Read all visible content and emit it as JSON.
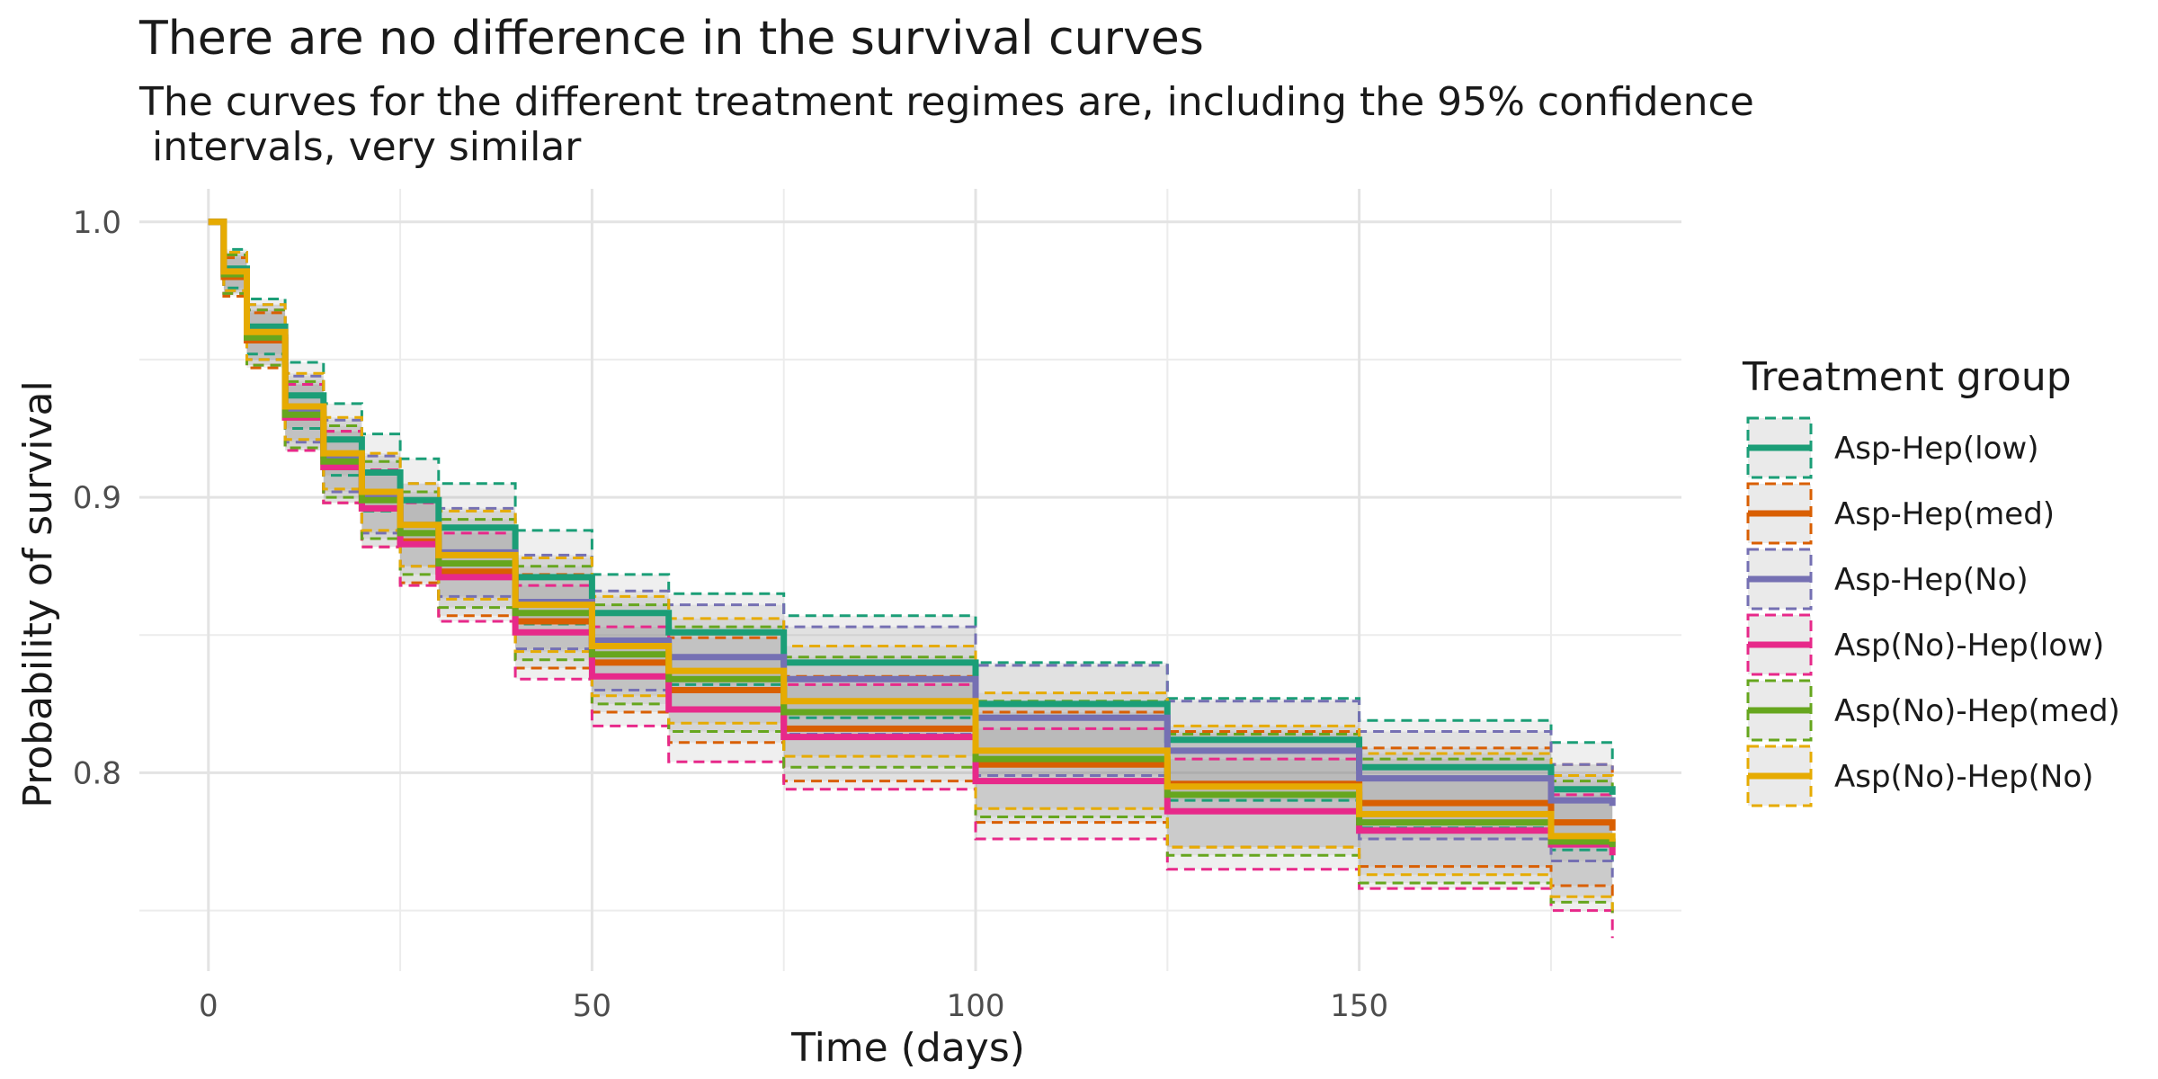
{
  "chart_data": {
    "type": "line",
    "title": "There are no difference in the survival curves",
    "subtitle_lines": [
      "The curves for the different treatment regimes are, including the 95% confidence",
      " intervals, very similar"
    ],
    "xlabel": "Time (days)",
    "ylabel": "Probability of survival",
    "xlim": [
      -9,
      192
    ],
    "ylim": [
      0.728,
      1.012
    ],
    "x_ticks": [
      0,
      50,
      100,
      150
    ],
    "x_tick_labels": [
      "0",
      "50",
      "100",
      "150"
    ],
    "y_ticks": [
      0.8,
      0.9,
      1.0
    ],
    "y_tick_labels": [
      "0.8",
      "0.9",
      "1.0"
    ],
    "x_minor_ticks": [
      25,
      75,
      125,
      175
    ],
    "y_minor_ticks": [
      0.75,
      0.85,
      0.95
    ],
    "grid": true,
    "legend": {
      "title": "Treatment group",
      "placement": "right"
    },
    "x": [
      0,
      2,
      5,
      10,
      15,
      20,
      25,
      30,
      40,
      50,
      60,
      75,
      100,
      125,
      150,
      175,
      183
    ],
    "series": [
      {
        "name": "Asp-Hep(low)",
        "color": "#1B9E77",
        "values": [
          1.0,
          0.983,
          0.962,
          0.937,
          0.921,
          0.909,
          0.899,
          0.889,
          0.871,
          0.858,
          0.851,
          0.84,
          0.825,
          0.812,
          0.802,
          0.794,
          0.792
        ],
        "lower": [
          1.0,
          0.976,
          0.952,
          0.925,
          0.908,
          0.895,
          0.884,
          0.873,
          0.854,
          0.84,
          0.832,
          0.82,
          0.804,
          0.79,
          0.78,
          0.772,
          0.765
        ],
        "upper": [
          1.0,
          0.99,
          0.972,
          0.949,
          0.934,
          0.923,
          0.914,
          0.905,
          0.888,
          0.872,
          0.865,
          0.857,
          0.84,
          0.827,
          0.819,
          0.811,
          0.805
        ]
      },
      {
        "name": "Asp-Hep(med)",
        "color": "#D95F02",
        "values": [
          1.0,
          0.98,
          0.957,
          0.929,
          0.911,
          0.896,
          0.884,
          0.873,
          0.855,
          0.84,
          0.83,
          0.816,
          0.803,
          0.796,
          0.789,
          0.782,
          0.779
        ],
        "lower": [
          1.0,
          0.973,
          0.947,
          0.917,
          0.898,
          0.882,
          0.869,
          0.857,
          0.838,
          0.822,
          0.811,
          0.797,
          0.782,
          0.773,
          0.766,
          0.759,
          0.754
        ],
        "upper": [
          1.0,
          0.987,
          0.967,
          0.941,
          0.924,
          0.91,
          0.899,
          0.889,
          0.872,
          0.858,
          0.849,
          0.835,
          0.822,
          0.815,
          0.809,
          0.803,
          0.8
        ]
      },
      {
        "name": "Asp-Hep(No)",
        "color": "#7570B3",
        "values": [
          1.0,
          0.982,
          0.96,
          0.932,
          0.915,
          0.901,
          0.89,
          0.88,
          0.862,
          0.848,
          0.842,
          0.834,
          0.82,
          0.808,
          0.798,
          0.79,
          0.788
        ],
        "lower": [
          1.0,
          0.975,
          0.95,
          0.92,
          0.902,
          0.887,
          0.875,
          0.864,
          0.845,
          0.83,
          0.823,
          0.814,
          0.799,
          0.786,
          0.776,
          0.768,
          0.762
        ],
        "upper": [
          1.0,
          0.989,
          0.97,
          0.944,
          0.928,
          0.915,
          0.905,
          0.896,
          0.879,
          0.866,
          0.861,
          0.853,
          0.839,
          0.826,
          0.815,
          0.803,
          0.801
        ]
      },
      {
        "name": "Asp(No)-Hep(low)",
        "color": "#E7298A",
        "values": [
          1.0,
          0.981,
          0.958,
          0.929,
          0.911,
          0.896,
          0.883,
          0.871,
          0.851,
          0.835,
          0.823,
          0.813,
          0.797,
          0.786,
          0.779,
          0.774,
          0.77
        ],
        "lower": [
          1.0,
          0.974,
          0.948,
          0.917,
          0.898,
          0.882,
          0.868,
          0.855,
          0.834,
          0.817,
          0.804,
          0.794,
          0.776,
          0.765,
          0.758,
          0.75,
          0.74
        ],
        "upper": [
          1.0,
          0.988,
          0.968,
          0.941,
          0.924,
          0.91,
          0.898,
          0.887,
          0.868,
          0.853,
          0.842,
          0.832,
          0.816,
          0.805,
          0.798,
          0.792,
          0.79
        ]
      },
      {
        "name": "Asp(No)-Hep(med)",
        "color": "#66A61E",
        "values": [
          1.0,
          0.981,
          0.958,
          0.93,
          0.913,
          0.899,
          0.887,
          0.876,
          0.858,
          0.843,
          0.834,
          0.822,
          0.805,
          0.792,
          0.782,
          0.775,
          0.773
        ],
        "lower": [
          1.0,
          0.974,
          0.948,
          0.918,
          0.9,
          0.885,
          0.872,
          0.86,
          0.841,
          0.825,
          0.815,
          0.802,
          0.784,
          0.77,
          0.76,
          0.753,
          0.748
        ],
        "upper": [
          1.0,
          0.988,
          0.968,
          0.942,
          0.926,
          0.913,
          0.902,
          0.892,
          0.875,
          0.861,
          0.853,
          0.842,
          0.826,
          0.814,
          0.805,
          0.797,
          0.795
        ]
      },
      {
        "name": "Asp(No)-Hep(No)",
        "color": "#E6AB02",
        "values": [
          1.0,
          0.982,
          0.96,
          0.933,
          0.916,
          0.902,
          0.89,
          0.879,
          0.861,
          0.846,
          0.837,
          0.826,
          0.808,
          0.795,
          0.785,
          0.777,
          0.775
        ],
        "lower": [
          1.0,
          0.975,
          0.95,
          0.921,
          0.903,
          0.888,
          0.875,
          0.863,
          0.844,
          0.828,
          0.818,
          0.806,
          0.787,
          0.773,
          0.763,
          0.755,
          0.75
        ],
        "upper": [
          1.0,
          0.989,
          0.97,
          0.945,
          0.929,
          0.916,
          0.905,
          0.895,
          0.878,
          0.864,
          0.856,
          0.846,
          0.829,
          0.817,
          0.807,
          0.799,
          0.798
        ]
      }
    ]
  }
}
